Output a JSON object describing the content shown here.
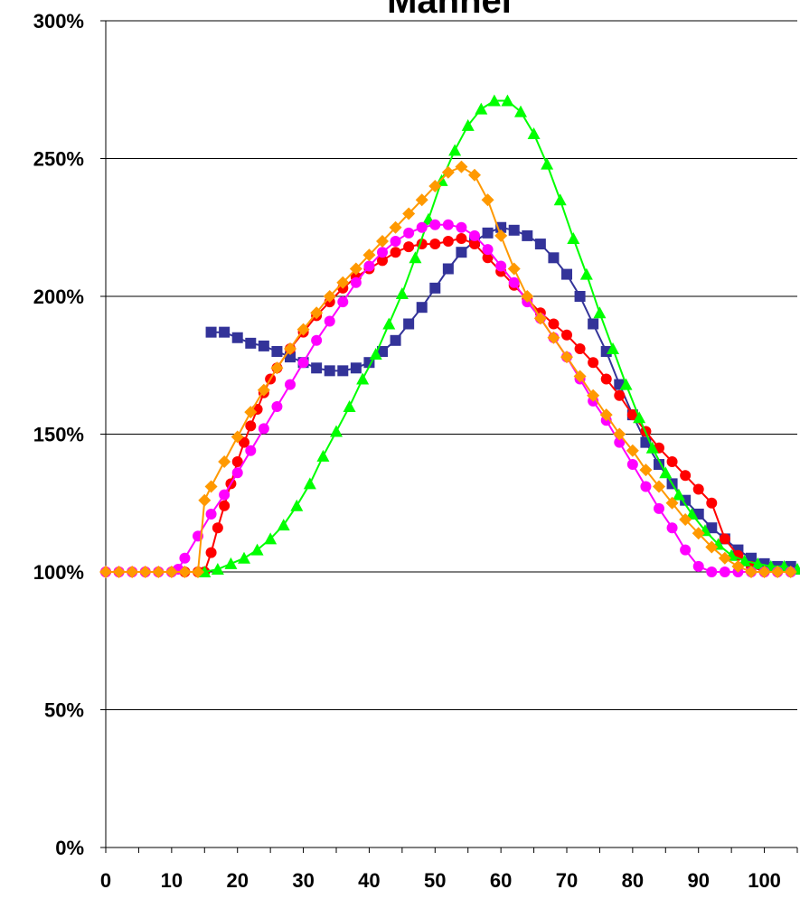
{
  "chart_data": {
    "type": "line",
    "title": "Mannel",
    "xlabel": "",
    "ylabel": "",
    "xlim": [
      0,
      105
    ],
    "ylim": [
      0,
      300
    ],
    "x_ticks": [
      0,
      10,
      20,
      30,
      40,
      50,
      60,
      70,
      80,
      90,
      100
    ],
    "x_tick_labels": [
      "0",
      "10",
      "20",
      "30",
      "40",
      "50",
      "60",
      "70",
      "80",
      "90",
      "100"
    ],
    "y_ticks": [
      0,
      50,
      100,
      150,
      200,
      250,
      300
    ],
    "y_tick_labels": [
      "0%",
      "50%",
      "100%",
      "150%",
      "200%",
      "250%",
      "300%"
    ],
    "grid": "horizontal",
    "legend": "none",
    "series": [
      {
        "color": "#333399",
        "marker": "square",
        "points": [
          [
            16,
            187
          ],
          [
            18,
            187
          ],
          [
            20,
            185
          ],
          [
            22,
            183
          ],
          [
            24,
            182
          ],
          [
            26,
            180
          ],
          [
            28,
            178
          ],
          [
            30,
            176
          ],
          [
            32,
            174
          ],
          [
            34,
            173
          ],
          [
            36,
            173
          ],
          [
            38,
            174
          ],
          [
            40,
            176
          ],
          [
            42,
            180
          ],
          [
            44,
            184
          ],
          [
            46,
            190
          ],
          [
            48,
            196
          ],
          [
            50,
            203
          ],
          [
            52,
            210
          ],
          [
            54,
            216
          ],
          [
            56,
            220
          ],
          [
            58,
            223
          ],
          [
            60,
            225
          ],
          [
            62,
            224
          ],
          [
            64,
            222
          ],
          [
            66,
            219
          ],
          [
            68,
            214
          ],
          [
            70,
            208
          ],
          [
            72,
            200
          ],
          [
            74,
            190
          ],
          [
            76,
            180
          ],
          [
            78,
            168
          ],
          [
            80,
            157
          ],
          [
            82,
            147
          ],
          [
            84,
            139
          ],
          [
            86,
            132
          ],
          [
            88,
            126
          ],
          [
            90,
            121
          ],
          [
            92,
            116
          ],
          [
            94,
            112
          ],
          [
            96,
            108
          ],
          [
            98,
            105
          ],
          [
            100,
            103
          ],
          [
            102,
            102
          ],
          [
            104,
            102
          ]
        ]
      },
      {
        "color": "#ff0000",
        "marker": "circle",
        "points": [
          [
            0,
            100
          ],
          [
            2,
            100
          ],
          [
            4,
            100
          ],
          [
            6,
            100
          ],
          [
            8,
            100
          ],
          [
            10,
            100
          ],
          [
            12,
            100
          ],
          [
            14,
            100
          ],
          [
            15,
            100
          ],
          [
            16,
            107
          ],
          [
            17,
            116
          ],
          [
            18,
            124
          ],
          [
            19,
            132
          ],
          [
            20,
            140
          ],
          [
            21,
            147
          ],
          [
            22,
            153
          ],
          [
            23,
            159
          ],
          [
            24,
            165
          ],
          [
            25,
            170
          ],
          [
            26,
            174
          ],
          [
            28,
            181
          ],
          [
            30,
            187
          ],
          [
            32,
            193
          ],
          [
            34,
            198
          ],
          [
            36,
            203
          ],
          [
            38,
            207
          ],
          [
            40,
            210
          ],
          [
            42,
            213
          ],
          [
            44,
            216
          ],
          [
            46,
            218
          ],
          [
            48,
            219
          ],
          [
            50,
            219
          ],
          [
            52,
            220
          ],
          [
            54,
            221
          ],
          [
            56,
            219
          ],
          [
            58,
            214
          ],
          [
            60,
            209
          ],
          [
            62,
            204
          ],
          [
            64,
            199
          ],
          [
            66,
            194
          ],
          [
            68,
            190
          ],
          [
            70,
            186
          ],
          [
            72,
            181
          ],
          [
            74,
            176
          ],
          [
            76,
            170
          ],
          [
            78,
            164
          ],
          [
            80,
            157
          ],
          [
            82,
            151
          ],
          [
            84,
            145
          ],
          [
            86,
            140
          ],
          [
            88,
            135
          ],
          [
            90,
            130
          ],
          [
            92,
            125
          ],
          [
            94,
            112
          ],
          [
            96,
            106
          ],
          [
            98,
            102
          ],
          [
            100,
            100
          ],
          [
            102,
            100
          ],
          [
            104,
            100
          ]
        ]
      },
      {
        "color": "#00ff00",
        "marker": "triangle",
        "points": [
          [
            15,
            100
          ],
          [
            17,
            101
          ],
          [
            19,
            103
          ],
          [
            21,
            105
          ],
          [
            23,
            108
          ],
          [
            25,
            112
          ],
          [
            27,
            117
          ],
          [
            29,
            124
          ],
          [
            31,
            132
          ],
          [
            33,
            142
          ],
          [
            35,
            151
          ],
          [
            37,
            160
          ],
          [
            39,
            170
          ],
          [
            41,
            179
          ],
          [
            43,
            190
          ],
          [
            45,
            201
          ],
          [
            47,
            214
          ],
          [
            49,
            228
          ],
          [
            51,
            242
          ],
          [
            53,
            253
          ],
          [
            55,
            262
          ],
          [
            57,
            268
          ],
          [
            59,
            271
          ],
          [
            61,
            271
          ],
          [
            63,
            267
          ],
          [
            65,
            259
          ],
          [
            67,
            248
          ],
          [
            69,
            235
          ],
          [
            71,
            221
          ],
          [
            73,
            208
          ],
          [
            75,
            194
          ],
          [
            77,
            181
          ],
          [
            79,
            168
          ],
          [
            81,
            156
          ],
          [
            83,
            145
          ],
          [
            85,
            136
          ],
          [
            87,
            128
          ],
          [
            89,
            121
          ],
          [
            91,
            115
          ],
          [
            93,
            110
          ],
          [
            95,
            106
          ],
          [
            97,
            104
          ],
          [
            99,
            103
          ],
          [
            101,
            102
          ],
          [
            103,
            102
          ],
          [
            105,
            101
          ]
        ]
      },
      {
        "color": "#ff00ff",
        "marker": "circle",
        "points": [
          [
            0,
            100
          ],
          [
            2,
            100
          ],
          [
            4,
            100
          ],
          [
            6,
            100
          ],
          [
            8,
            100
          ],
          [
            10,
            100
          ],
          [
            11,
            101
          ],
          [
            12,
            105
          ],
          [
            14,
            113
          ],
          [
            16,
            121
          ],
          [
            18,
            128
          ],
          [
            20,
            136
          ],
          [
            22,
            144
          ],
          [
            24,
            152
          ],
          [
            26,
            160
          ],
          [
            28,
            168
          ],
          [
            30,
            176
          ],
          [
            32,
            184
          ],
          [
            34,
            191
          ],
          [
            36,
            198
          ],
          [
            38,
            205
          ],
          [
            40,
            211
          ],
          [
            42,
            216
          ],
          [
            44,
            220
          ],
          [
            46,
            223
          ],
          [
            48,
            225
          ],
          [
            50,
            226
          ],
          [
            52,
            226
          ],
          [
            54,
            225
          ],
          [
            56,
            222
          ],
          [
            58,
            217
          ],
          [
            60,
            211
          ],
          [
            62,
            205
          ],
          [
            64,
            198
          ],
          [
            66,
            192
          ],
          [
            68,
            185
          ],
          [
            70,
            178
          ],
          [
            72,
            170
          ],
          [
            74,
            162
          ],
          [
            76,
            155
          ],
          [
            78,
            147
          ],
          [
            80,
            139
          ],
          [
            82,
            131
          ],
          [
            84,
            123
          ],
          [
            86,
            116
          ],
          [
            88,
            108
          ],
          [
            90,
            102
          ],
          [
            92,
            100
          ],
          [
            94,
            100
          ],
          [
            96,
            100
          ],
          [
            98,
            100
          ],
          [
            100,
            100
          ],
          [
            102,
            100
          ],
          [
            104,
            100
          ]
        ]
      },
      {
        "color": "#ff9900",
        "marker": "diamond",
        "points": [
          [
            0,
            100
          ],
          [
            2,
            100
          ],
          [
            4,
            100
          ],
          [
            6,
            100
          ],
          [
            8,
            100
          ],
          [
            10,
            100
          ],
          [
            12,
            100
          ],
          [
            14,
            100
          ],
          [
            15,
            126
          ],
          [
            16,
            131
          ],
          [
            18,
            140
          ],
          [
            20,
            149
          ],
          [
            22,
            158
          ],
          [
            24,
            166
          ],
          [
            26,
            174
          ],
          [
            28,
            181
          ],
          [
            30,
            188
          ],
          [
            32,
            194
          ],
          [
            34,
            200
          ],
          [
            36,
            205
          ],
          [
            38,
            210
          ],
          [
            40,
            215
          ],
          [
            42,
            220
          ],
          [
            44,
            225
          ],
          [
            46,
            230
          ],
          [
            48,
            235
          ],
          [
            50,
            240
          ],
          [
            52,
            245
          ],
          [
            54,
            247
          ],
          [
            56,
            244
          ],
          [
            58,
            235
          ],
          [
            60,
            222
          ],
          [
            62,
            210
          ],
          [
            64,
            200
          ],
          [
            66,
            192
          ],
          [
            68,
            185
          ],
          [
            70,
            178
          ],
          [
            72,
            171
          ],
          [
            74,
            164
          ],
          [
            76,
            157
          ],
          [
            78,
            150
          ],
          [
            80,
            144
          ],
          [
            82,
            137
          ],
          [
            84,
            131
          ],
          [
            86,
            125
          ],
          [
            88,
            119
          ],
          [
            90,
            114
          ],
          [
            92,
            109
          ],
          [
            94,
            105
          ],
          [
            96,
            102
          ],
          [
            98,
            100
          ],
          [
            100,
            100
          ],
          [
            102,
            100
          ],
          [
            104,
            100
          ]
        ]
      }
    ]
  }
}
